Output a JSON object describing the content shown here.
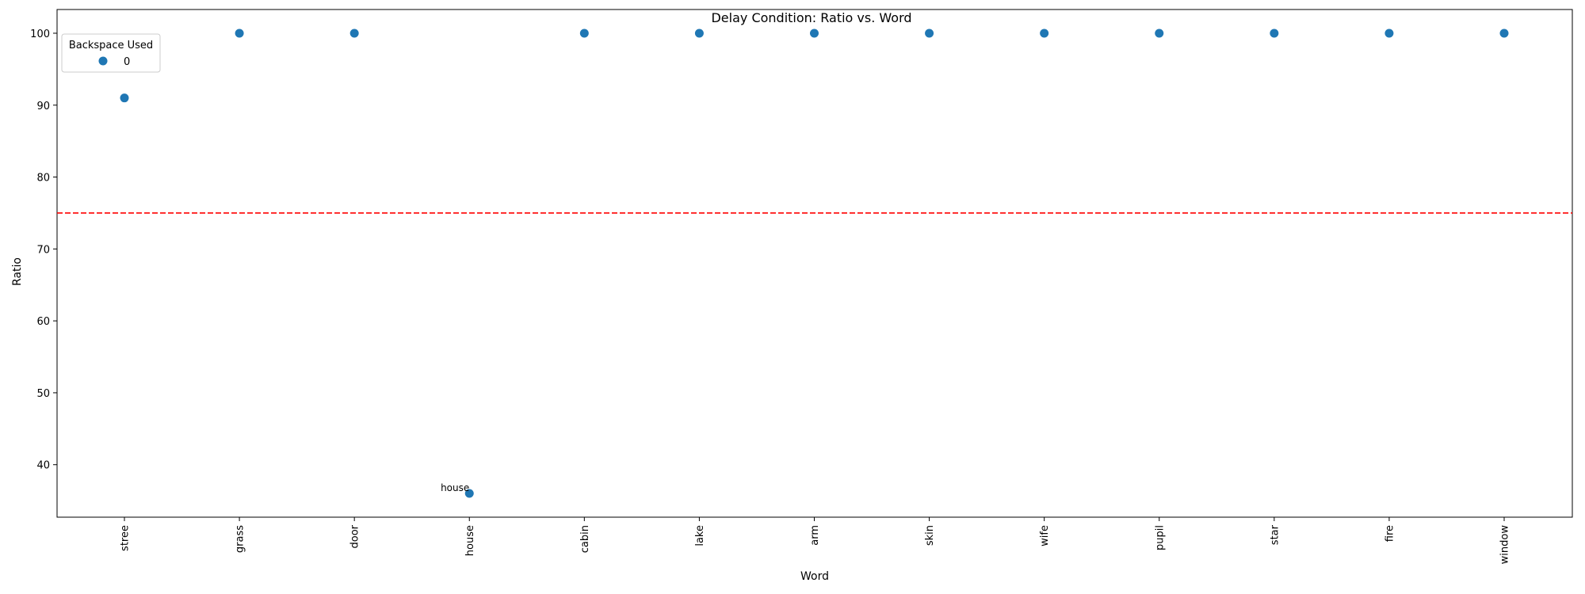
{
  "chart_data": {
    "type": "scatter",
    "title": "Delay Condition: Ratio vs. Word",
    "xlabel": "Word",
    "ylabel": "Ratio",
    "categories": [
      "stree",
      "grass",
      "door",
      "house",
      "cabin",
      "lake",
      "arm",
      "skin",
      "wife",
      "pupil",
      "star",
      "fire",
      "window"
    ],
    "series": [
      {
        "name": "0",
        "color": "#1f77b4",
        "values": [
          91,
          100,
          100,
          36,
          100,
          100,
          100,
          100,
          100,
          100,
          100,
          100,
          100
        ]
      }
    ],
    "ylim": [
      32.7,
      103.3
    ],
    "yticks": [
      40,
      50,
      60,
      70,
      80,
      90,
      100
    ],
    "reference_line": {
      "y": 75,
      "color": "#ff0000",
      "style": "dashed"
    },
    "annotations": [
      {
        "category": "house",
        "value": 36,
        "text": "house"
      }
    ],
    "legend": {
      "title": "Backspace Used",
      "placement": "top-left",
      "entries": [
        "0"
      ]
    },
    "grid": false
  }
}
